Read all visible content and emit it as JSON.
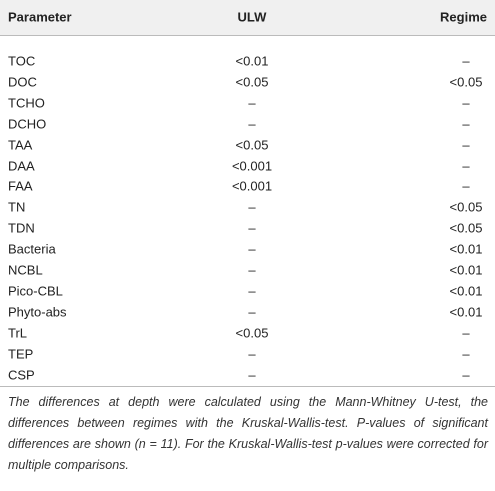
{
  "table": {
    "header": [
      "Parameter",
      "ULW",
      "Regime"
    ],
    "rows": [
      [
        "TOC",
        "<0.01",
        "–"
      ],
      [
        "DOC",
        "<0.05",
        "<0.05"
      ],
      [
        "TCHO",
        "–",
        "–"
      ],
      [
        "DCHO",
        "–",
        "–"
      ],
      [
        "TAA",
        "<0.05",
        "–"
      ],
      [
        "DAA",
        "<0.001",
        "–"
      ],
      [
        "FAA",
        "<0.001",
        "–"
      ],
      [
        "TN",
        "–",
        "<0.05"
      ],
      [
        "TDN",
        "–",
        "<0.05"
      ],
      [
        "Bacteria",
        "–",
        "<0.01"
      ],
      [
        "NCBL",
        "–",
        "<0.01"
      ],
      [
        "Pico-CBL",
        "–",
        "<0.01"
      ],
      [
        "Phyto-abs",
        "–",
        "<0.01"
      ],
      [
        "TrL",
        "<0.05",
        "–"
      ],
      [
        "TEP",
        "–",
        "–"
      ],
      [
        "CSP",
        "–",
        "–"
      ]
    ]
  },
  "footnote": "The differences at depth were calculated using the Mann-Whitney U-test, the differences between regimes with the Kruskal-Wallis-test. P-values of significant differences are shown (n = 11). For the Kruskal-Wallis-test p-values were corrected for multiple comparisons."
}
